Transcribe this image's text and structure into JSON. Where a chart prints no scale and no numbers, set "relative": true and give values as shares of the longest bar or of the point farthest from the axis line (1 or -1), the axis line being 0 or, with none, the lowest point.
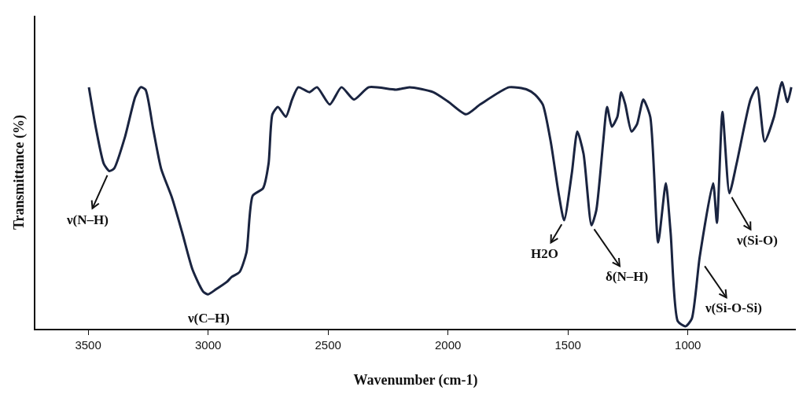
{
  "chart_data": {
    "type": "line",
    "relative": true,
    "xlabel": "Wavenumber (cm-1)",
    "ylabel": "Transmittance (%)",
    "xlim": [
      3720,
      550
    ],
    "xticks": [
      3500,
      3000,
      2500,
      2000,
      1500,
      1000
    ],
    "grid": false,
    "marker": "none",
    "line_style": "solid",
    "series": [
      {
        "color": "#1a2440",
        "x": [
          3497,
          3467,
          3435,
          3412,
          3392,
          3346,
          3304,
          3281,
          3261,
          3229,
          3196,
          3150,
          3108,
          3065,
          3020,
          3000,
          2967,
          2922,
          2902,
          2869,
          2840,
          2814,
          2771,
          2748,
          2732,
          2709,
          2676,
          2650,
          2624,
          2578,
          2546,
          2493,
          2444,
          2392,
          2330,
          2216,
          2160,
          2062,
          1997,
          1925,
          1866,
          1745,
          1670,
          1637,
          1605,
          1572,
          1539,
          1516,
          1484,
          1461,
          1435,
          1402,
          1382,
          1353,
          1337,
          1317,
          1294,
          1278,
          1261,
          1235,
          1212,
          1186,
          1157,
          1124,
          1092,
          1072,
          1042,
          1010,
          984,
          951,
          895,
          879,
          856,
          827,
          797,
          739,
          712,
          680,
          641,
          608,
          585,
          569
        ],
        "values": [
          0.98,
          0.81,
          0.67,
          0.64,
          0.65,
          0.78,
          0.94,
          0.98,
          0.97,
          0.81,
          0.65,
          0.53,
          0.39,
          0.24,
          0.15,
          0.14,
          0.16,
          0.19,
          0.21,
          0.23,
          0.31,
          0.54,
          0.57,
          0.67,
          0.87,
          0.9,
          0.86,
          0.93,
          0.98,
          0.96,
          0.98,
          0.91,
          0.98,
          0.93,
          0.98,
          0.97,
          0.98,
          0.96,
          0.92,
          0.87,
          0.91,
          0.98,
          0.97,
          0.95,
          0.91,
          0.76,
          0.55,
          0.44,
          0.63,
          0.8,
          0.71,
          0.42,
          0.48,
          0.76,
          0.9,
          0.82,
          0.86,
          0.96,
          0.91,
          0.8,
          0.83,
          0.93,
          0.86,
          0.35,
          0.59,
          0.39,
          0.03,
          0.01,
          0.04,
          0.29,
          0.59,
          0.43,
          0.88,
          0.55,
          0.67,
          0.93,
          0.98,
          0.76,
          0.86,
          1.0,
          0.92,
          0.98
        ]
      }
    ],
    "annotations": [
      {
        "text": "ν(N–H)",
        "x": 3412,
        "y": 0.64
      },
      {
        "text": "ν(C–H)",
        "x": 3000,
        "y": 0.14
      },
      {
        "text": "H2O",
        "x": 1516,
        "y": 0.44
      },
      {
        "text": "δ(N–H)",
        "x": 1402,
        "y": 0.42
      },
      {
        "text": "ν(Si-O-Si)",
        "x": 941,
        "y": 0.27
      },
      {
        "text": "ν(Si-O)",
        "x": 827,
        "y": 0.55
      }
    ]
  }
}
